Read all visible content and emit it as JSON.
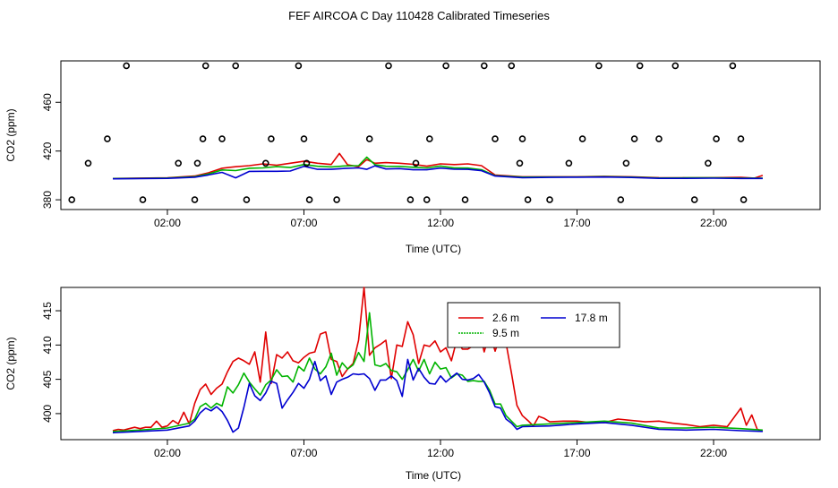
{
  "title": "FEF AIRCOA C  Day 110428  Calibrated Timeseries",
  "chart_data": [
    {
      "type": "line",
      "panel": "top",
      "xlabel": "Time (UTC)",
      "ylabel": "CO2 (ppm)",
      "xlim": [
        -1.9,
        25.9
      ],
      "ylim": [
        372,
        494
      ],
      "xticks": [
        2,
        7,
        12,
        17,
        22
      ],
      "xtick_labels": [
        "02:00",
        "07:00",
        "12:00",
        "17:00",
        "22:00"
      ],
      "yticks": [
        380,
        420,
        460
      ],
      "ytick_labels": [
        "380",
        "420",
        "460"
      ],
      "series": [
        {
          "color": "#e00000",
          "x": [
            0,
            1,
            2,
            3,
            3.5,
            4,
            4.5,
            5,
            5.5,
            6,
            6.5,
            7,
            7.5,
            8,
            8.3,
            8.6,
            9,
            9.3,
            9.6,
            10,
            10.5,
            11,
            11.5,
            12,
            12.5,
            13,
            13.5,
            14,
            15,
            16,
            17,
            18,
            19,
            20,
            21,
            22,
            23,
            23.5,
            23.8
          ],
          "y": [
            397.5,
            397.8,
            398.1,
            399.5,
            402.1,
            405.9,
            407.1,
            408.0,
            409.5,
            408.4,
            410.0,
            411.6,
            410.0,
            409.0,
            418.0,
            408.7,
            407.1,
            413.0,
            410.0,
            410.5,
            410.0,
            409.1,
            407.6,
            409.5,
            408.9,
            409.5,
            408.0,
            400.4,
            398.9,
            398.9,
            398.9,
            399.3,
            398.9,
            398.2,
            398.1,
            398.2,
            398.4,
            397.8,
            400.0
          ]
        },
        {
          "color": "#00b400",
          "x": [
            0,
            1,
            2,
            3,
            3.5,
            4,
            4.5,
            5,
            5.5,
            6,
            6.5,
            7,
            7.5,
            8,
            8.5,
            9,
            9.3,
            9.6,
            10,
            10.5,
            11,
            11.5,
            12,
            12.5,
            13,
            13.5,
            14,
            15,
            16,
            17,
            18,
            19,
            20,
            21,
            22,
            23,
            23.8
          ],
          "y": [
            397.4,
            397.6,
            397.9,
            399.0,
            401.2,
            404.5,
            404.0,
            405.9,
            406.2,
            407.2,
            406.5,
            409.0,
            407.5,
            407.0,
            407.8,
            408.0,
            415.0,
            408.8,
            407.5,
            407.4,
            406.7,
            406.2,
            407.7,
            406.1,
            406.0,
            404.7,
            399.8,
            398.6,
            398.7,
            398.7,
            399.0,
            398.6,
            397.9,
            398.0,
            398.0,
            397.8,
            397.8
          ]
        },
        {
          "color": "#0000d0",
          "x": [
            0,
            1,
            2,
            3,
            3.5,
            4,
            4.5,
            5,
            5.5,
            6,
            6.5,
            7,
            7.5,
            8,
            8.5,
            9,
            9.3,
            9.6,
            10,
            10.5,
            11,
            11.5,
            12,
            12.5,
            13,
            13.5,
            14,
            15,
            16,
            17,
            18,
            19,
            20,
            21,
            22,
            23,
            23.8
          ],
          "y": [
            397.2,
            397.4,
            397.6,
            398.5,
            400.4,
            402.5,
            398.0,
            403.3,
            403.4,
            403.4,
            403.6,
            407.5,
            405.0,
            405.0,
            405.7,
            406.2,
            405.0,
            407.9,
            405.3,
            405.6,
            404.6,
            404.6,
            406.0,
            405.1,
            405.0,
            403.9,
            399.5,
            398.2,
            398.4,
            398.5,
            398.7,
            398.3,
            397.6,
            397.6,
            397.7,
            397.5,
            397.5
          ]
        }
      ],
      "markers": {
        "symbol": "open-circle",
        "x": [
          -1.5,
          -0.9,
          -0.2,
          0.5,
          1.1,
          2.4,
          3.0,
          3.1,
          3.3,
          3.4,
          4.0,
          4.5,
          4.9,
          5.6,
          5.8,
          6.8,
          7.0,
          7.1,
          7.2,
          8.2,
          9.4,
          10.1,
          10.9,
          11.1,
          11.5,
          11.6,
          12.2,
          12.9,
          13.6,
          14.0,
          14.6,
          14.9,
          15.0,
          15.2,
          16.0,
          16.7,
          17.2,
          17.8,
          18.6,
          18.8,
          19.1,
          19.3,
          20.0,
          20.6,
          21.3,
          21.8,
          22.1,
          22.7,
          23.0,
          23.1
        ],
        "y": [
          380,
          410,
          430,
          490,
          380,
          410,
          380,
          410,
          430,
          490,
          430,
          490,
          380,
          410,
          430,
          490,
          430,
          410,
          380,
          380,
          430,
          490,
          380,
          410,
          380,
          430,
          490,
          380,
          490,
          430,
          490,
          410,
          430,
          380,
          380,
          410,
          430,
          490,
          380,
          410,
          430,
          490,
          430,
          490,
          380,
          410,
          430,
          490,
          430,
          380
        ]
      }
    },
    {
      "type": "line",
      "panel": "bottom",
      "xlabel": "Time (UTC)",
      "ylabel": "CO2 (ppm)",
      "xlim": [
        -1.9,
        25.9
      ],
      "ylim": [
        396.2,
        418.4
      ],
      "xticks": [
        2,
        7,
        12,
        17,
        22
      ],
      "xtick_labels": [
        "02:00",
        "07:00",
        "12:00",
        "17:00",
        "22:00"
      ],
      "yticks": [
        400,
        405,
        410,
        415
      ],
      "ytick_labels": [
        "400",
        "405",
        "410",
        "415"
      ],
      "legend": {
        "placement": "top-center",
        "entries": [
          "2.6 m",
          "17.8 m",
          "9.5 m"
        ]
      },
      "series": [
        {
          "name": "2.6 m",
          "color": "#e00000",
          "x": [
            0,
            0.2,
            0.4,
            0.6,
            0.8,
            1.0,
            1.2,
            1.4,
            1.6,
            1.8,
            2.0,
            2.2,
            2.4,
            2.6,
            2.8,
            3.0,
            3.2,
            3.4,
            3.6,
            3.8,
            4.0,
            4.2,
            4.4,
            4.6,
            4.8,
            5.0,
            5.2,
            5.4,
            5.6,
            5.8,
            6.0,
            6.2,
            6.4,
            6.6,
            6.8,
            7.0,
            7.2,
            7.4,
            7.6,
            7.8,
            8.0,
            8.2,
            8.4,
            8.6,
            8.8,
            9.0,
            9.2,
            9.4,
            9.6,
            9.8,
            10.0,
            10.2,
            10.4,
            10.6,
            10.8,
            11.0,
            11.2,
            11.4,
            11.6,
            11.8,
            12.0,
            12.2,
            12.4,
            12.6,
            12.8,
            13.0,
            13.2,
            13.4,
            13.6,
            13.8,
            14.0,
            14.2,
            14.4,
            14.6,
            14.8,
            15.0,
            15.2,
            15.4,
            15.6,
            15.8,
            16.0,
            16.5,
            17.0,
            17.5,
            18.0,
            18.5,
            19.0,
            19.5,
            20.0,
            20.5,
            21.0,
            21.5,
            22.0,
            22.5,
            23.0,
            23.2,
            23.4,
            23.6,
            23.8
          ],
          "y": [
            397.5,
            397.7,
            397.6,
            397.8,
            398.0,
            397.8,
            398.0,
            398.0,
            398.9,
            398.0,
            398.2,
            399.0,
            398.5,
            400.2,
            398.5,
            401.5,
            403.5,
            404.3,
            402.8,
            403.7,
            404.3,
            406.1,
            407.6,
            408.1,
            407.7,
            407.2,
            409.0,
            404.6,
            411.9,
            404.4,
            408.6,
            408.1,
            409.0,
            407.7,
            407.4,
            408.2,
            408.8,
            409.0,
            411.6,
            411.9,
            407.9,
            407.6,
            405.4,
            406.5,
            407.3,
            410.7,
            418.4,
            408.5,
            409.6,
            410.1,
            410.7,
            405.1,
            410.0,
            409.8,
            413.4,
            411.5,
            407.3,
            410.0,
            409.8,
            410.6,
            409.0,
            409.6,
            407.7,
            410.8,
            409.4,
            409.4,
            409.9,
            412.5,
            409.0,
            411.8,
            409.1,
            411.5,
            410.3,
            405.9,
            401.2,
            399.7,
            399.0,
            398.2,
            399.6,
            399.3,
            398.8,
            398.9,
            398.9,
            398.7,
            398.7,
            399.2,
            399.0,
            398.8,
            398.9,
            398.6,
            398.4,
            398.1,
            398.3,
            398.1,
            400.8,
            398.3,
            399.8,
            397.7,
            397.4
          ]
        },
        {
          "name": "9.5 m",
          "color": "#00b400",
          "x": [
            0,
            1.0,
            2.0,
            2.8,
            3.0,
            3.2,
            3.4,
            3.6,
            3.8,
            4.0,
            4.2,
            4.4,
            4.6,
            4.8,
            5.0,
            5.2,
            5.4,
            5.6,
            5.8,
            6.0,
            6.2,
            6.4,
            6.6,
            6.8,
            7.0,
            7.2,
            7.4,
            7.6,
            7.8,
            8.0,
            8.2,
            8.4,
            8.6,
            8.8,
            9.0,
            9.2,
            9.4,
            9.6,
            9.8,
            10.0,
            10.2,
            10.4,
            10.6,
            10.8,
            11.0,
            11.2,
            11.4,
            11.6,
            11.8,
            12.0,
            12.2,
            12.4,
            12.6,
            12.8,
            13.0,
            13.2,
            13.4,
            13.6,
            13.8,
            14.0,
            14.2,
            14.4,
            14.6,
            14.8,
            15.0,
            16.0,
            17.0,
            18.0,
            19.0,
            20.0,
            21.0,
            22.0,
            23.0,
            23.8
          ],
          "y": [
            397.4,
            397.6,
            397.9,
            398.6,
            399.2,
            401.0,
            401.5,
            400.8,
            401.5,
            401.1,
            403.9,
            403.0,
            404.2,
            405.9,
            404.6,
            403.6,
            402.7,
            404.2,
            404.9,
            406.4,
            405.4,
            405.5,
            404.6,
            406.9,
            406.2,
            408.1,
            406.5,
            405.8,
            406.8,
            408.8,
            405.6,
            407.4,
            406.5,
            407.1,
            408.9,
            407.6,
            414.7,
            407.1,
            406.9,
            407.3,
            406.3,
            406.1,
            405.0,
            406.4,
            407.9,
            406.2,
            407.9,
            405.8,
            407.5,
            406.5,
            406.7,
            405.2,
            405.8,
            405.6,
            404.7,
            404.8,
            404.7,
            404.7,
            403.4,
            401.4,
            401.4,
            399.7,
            398.9,
            398.1,
            398.3,
            398.5,
            398.7,
            398.9,
            398.6,
            397.9,
            397.9,
            398.0,
            397.8,
            397.6
          ]
        },
        {
          "name": "17.8 m",
          "color": "#0000d0",
          "x": [
            0,
            1.0,
            2.0,
            2.8,
            3.0,
            3.2,
            3.4,
            3.6,
            3.8,
            4.0,
            4.2,
            4.4,
            4.6,
            4.8,
            5.0,
            5.2,
            5.4,
            5.6,
            5.8,
            6.0,
            6.2,
            6.4,
            6.6,
            6.8,
            7.0,
            7.2,
            7.4,
            7.6,
            7.8,
            8.0,
            8.2,
            8.4,
            8.6,
            8.8,
            9.0,
            9.2,
            9.4,
            9.6,
            9.8,
            10.0,
            10.2,
            10.4,
            10.6,
            10.8,
            11.0,
            11.2,
            11.4,
            11.6,
            11.8,
            12.0,
            12.2,
            12.4,
            12.6,
            12.8,
            13.0,
            13.2,
            13.4,
            13.6,
            13.8,
            14.0,
            14.2,
            14.4,
            14.6,
            14.8,
            15.0,
            16.0,
            17.0,
            18.0,
            19.0,
            20.0,
            21.0,
            22.0,
            23.0,
            23.8
          ],
          "y": [
            397.2,
            397.4,
            397.6,
            398.2,
            398.9,
            400.1,
            400.8,
            400.4,
            401.0,
            400.3,
            399.0,
            397.3,
            397.9,
            400.9,
            404.4,
            402.6,
            401.9,
            403.0,
            404.7,
            404.4,
            400.8,
            402.0,
            403.1,
            404.4,
            403.7,
            405.0,
            407.6,
            404.8,
            405.5,
            402.8,
            404.6,
            405.0,
            405.3,
            405.8,
            405.7,
            405.8,
            405.1,
            403.4,
            404.9,
            404.9,
            405.5,
            404.8,
            402.5,
            407.9,
            404.9,
            406.6,
            405.3,
            404.4,
            404.3,
            405.5,
            404.6,
            405.3,
            405.9,
            405.0,
            404.9,
            405.1,
            405.7,
            404.6,
            403.0,
            401.0,
            400.8,
            399.2,
            398.6,
            397.7,
            398.1,
            398.2,
            398.5,
            398.7,
            398.3,
            397.7,
            397.6,
            397.7,
            397.5,
            397.4
          ]
        }
      ]
    }
  ]
}
